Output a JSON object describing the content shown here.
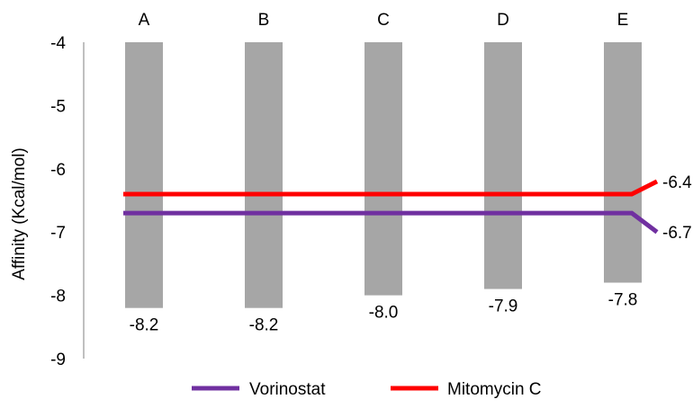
{
  "chart_data": {
    "type": "bar",
    "title": "",
    "xlabel": "",
    "ylabel": "Affinity (Kcal/mol)",
    "ylim": [
      -9,
      -4
    ],
    "yticks": [
      -4,
      -5,
      -6,
      -7,
      -8,
      -9
    ],
    "categories": [
      "A",
      "B",
      "C",
      "D",
      "E"
    ],
    "values": [
      -8.2,
      -8.2,
      -8.0,
      -7.9,
      -7.8
    ],
    "value_labels": [
      "-8.2",
      "-8.2",
      "-8.0",
      "-7.9",
      "-7.8"
    ],
    "bar_color": "#a6a6a6",
    "reference_lines": [
      {
        "name": "Vorinostat",
        "value": -6.7,
        "label": "-6.7",
        "color": "#7030a0"
      },
      {
        "name": "Mitomycin C",
        "value": -6.4,
        "label": "-6.4",
        "color": "#ff0000"
      }
    ],
    "legend_position": "bottom",
    "grid": false
  }
}
